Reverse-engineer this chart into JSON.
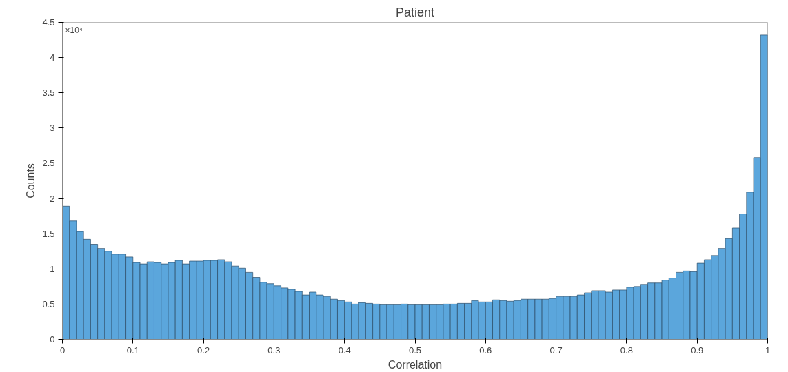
{
  "chart_data": {
    "type": "histogram",
    "title": "Patient",
    "xlabel": "Correlation",
    "ylabel": "Counts",
    "annotations": [
      "×10⁴"
    ],
    "color": "#5ba6dc",
    "bins": [
      0,
      0.01,
      0.02,
      0.03,
      0.04,
      0.05,
      0.06,
      0.07,
      0.08,
      0.09,
      0.1,
      0.11,
      0.12,
      0.13,
      0.14,
      0.15,
      0.16,
      0.17,
      0.18,
      0.19,
      0.2,
      0.21,
      0.22,
      0.23,
      0.24,
      0.25,
      0.26,
      0.27,
      0.28,
      0.29,
      0.3,
      0.31,
      0.32,
      0.33,
      0.34,
      0.35,
      0.36,
      0.37,
      0.38,
      0.39,
      0.4,
      0.41,
      0.42,
      0.43,
      0.44,
      0.45,
      0.46,
      0.47,
      0.48,
      0.49,
      0.5,
      0.51,
      0.52,
      0.53,
      0.54,
      0.55,
      0.56,
      0.57,
      0.58,
      0.59,
      0.6,
      0.61,
      0.62,
      0.63,
      0.64,
      0.65,
      0.66,
      0.67,
      0.68,
      0.69,
      0.7,
      0.71,
      0.72,
      0.73,
      0.74,
      0.75,
      0.76,
      0.77,
      0.78,
      0.79,
      0.8,
      0.81,
      0.82,
      0.83,
      0.84,
      0.85,
      0.86,
      0.87,
      0.88,
      0.89,
      0.9,
      0.91,
      0.92,
      0.93,
      0.94,
      0.95,
      0.96,
      0.97,
      0.98,
      0.99,
      1
    ],
    "values": [
      1.89,
      1.68,
      1.53,
      1.42,
      1.35,
      1.29,
      1.25,
      1.21,
      1.21,
      1.17,
      1.09,
      1.07,
      1.1,
      1.09,
      1.07,
      1.09,
      1.12,
      1.07,
      1.11,
      1.11,
      1.12,
      1.12,
      1.13,
      1.1,
      1.04,
      1.01,
      0.95,
      0.88,
      0.81,
      0.79,
      0.76,
      0.73,
      0.71,
      0.68,
      0.63,
      0.67,
      0.63,
      0.61,
      0.57,
      0.55,
      0.53,
      0.5,
      0.52,
      0.51,
      0.5,
      0.49,
      0.49,
      0.49,
      0.5,
      0.49,
      0.49,
      0.49,
      0.49,
      0.49,
      0.5,
      0.5,
      0.51,
      0.51,
      0.55,
      0.53,
      0.53,
      0.56,
      0.55,
      0.54,
      0.55,
      0.57,
      0.57,
      0.57,
      0.57,
      0.58,
      0.61,
      0.61,
      0.61,
      0.63,
      0.66,
      0.69,
      0.69,
      0.67,
      0.7,
      0.7,
      0.74,
      0.75,
      0.78,
      0.8,
      0.8,
      0.84,
      0.87,
      0.95,
      0.97,
      0.96,
      1.08,
      1.13,
      1.19,
      1.29,
      1.43,
      1.58,
      1.78,
      2.09,
      2.58,
      4.32
    ],
    "xlim": [
      0,
      1
    ],
    "ylim": [
      0,
      4.5
    ],
    "xticks": [
      0,
      0.1,
      0.2,
      0.3,
      0.4,
      0.5,
      0.6,
      0.7,
      0.8,
      0.9,
      1
    ],
    "yticks": [
      0,
      0.5,
      1,
      1.5,
      2,
      2.5,
      3,
      3.5,
      4,
      4.5
    ],
    "grid": false
  }
}
